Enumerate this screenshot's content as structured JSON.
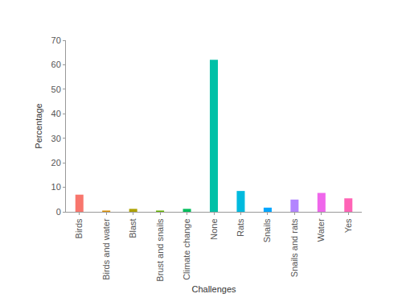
{
  "chart_data": {
    "type": "bar",
    "x_label": "Challenges",
    "y_label": "Percentage",
    "categories": [
      "Birds",
      "Birds and water",
      "Blast",
      "Brust and snails",
      "Climate change",
      "None",
      "Rats",
      "Snails",
      "Snails and rats",
      "Water",
      "Yes"
    ],
    "values": [
      7,
      0.5,
      1.2,
      0.5,
      1.2,
      62,
      8.5,
      1.7,
      5,
      7.7,
      5.5
    ],
    "colors": [
      "#F8766D",
      "#DB8E00",
      "#AEA200",
      "#64B200",
      "#00BD5C",
      "#00C1A7",
      "#00BADE",
      "#00A6FF",
      "#B385FF",
      "#EF67EB",
      "#FF63B6"
    ],
    "ylim": [
      0,
      70
    ],
    "yticks": [
      0,
      10,
      20,
      30,
      40,
      50,
      60,
      70
    ],
    "grid": false
  }
}
